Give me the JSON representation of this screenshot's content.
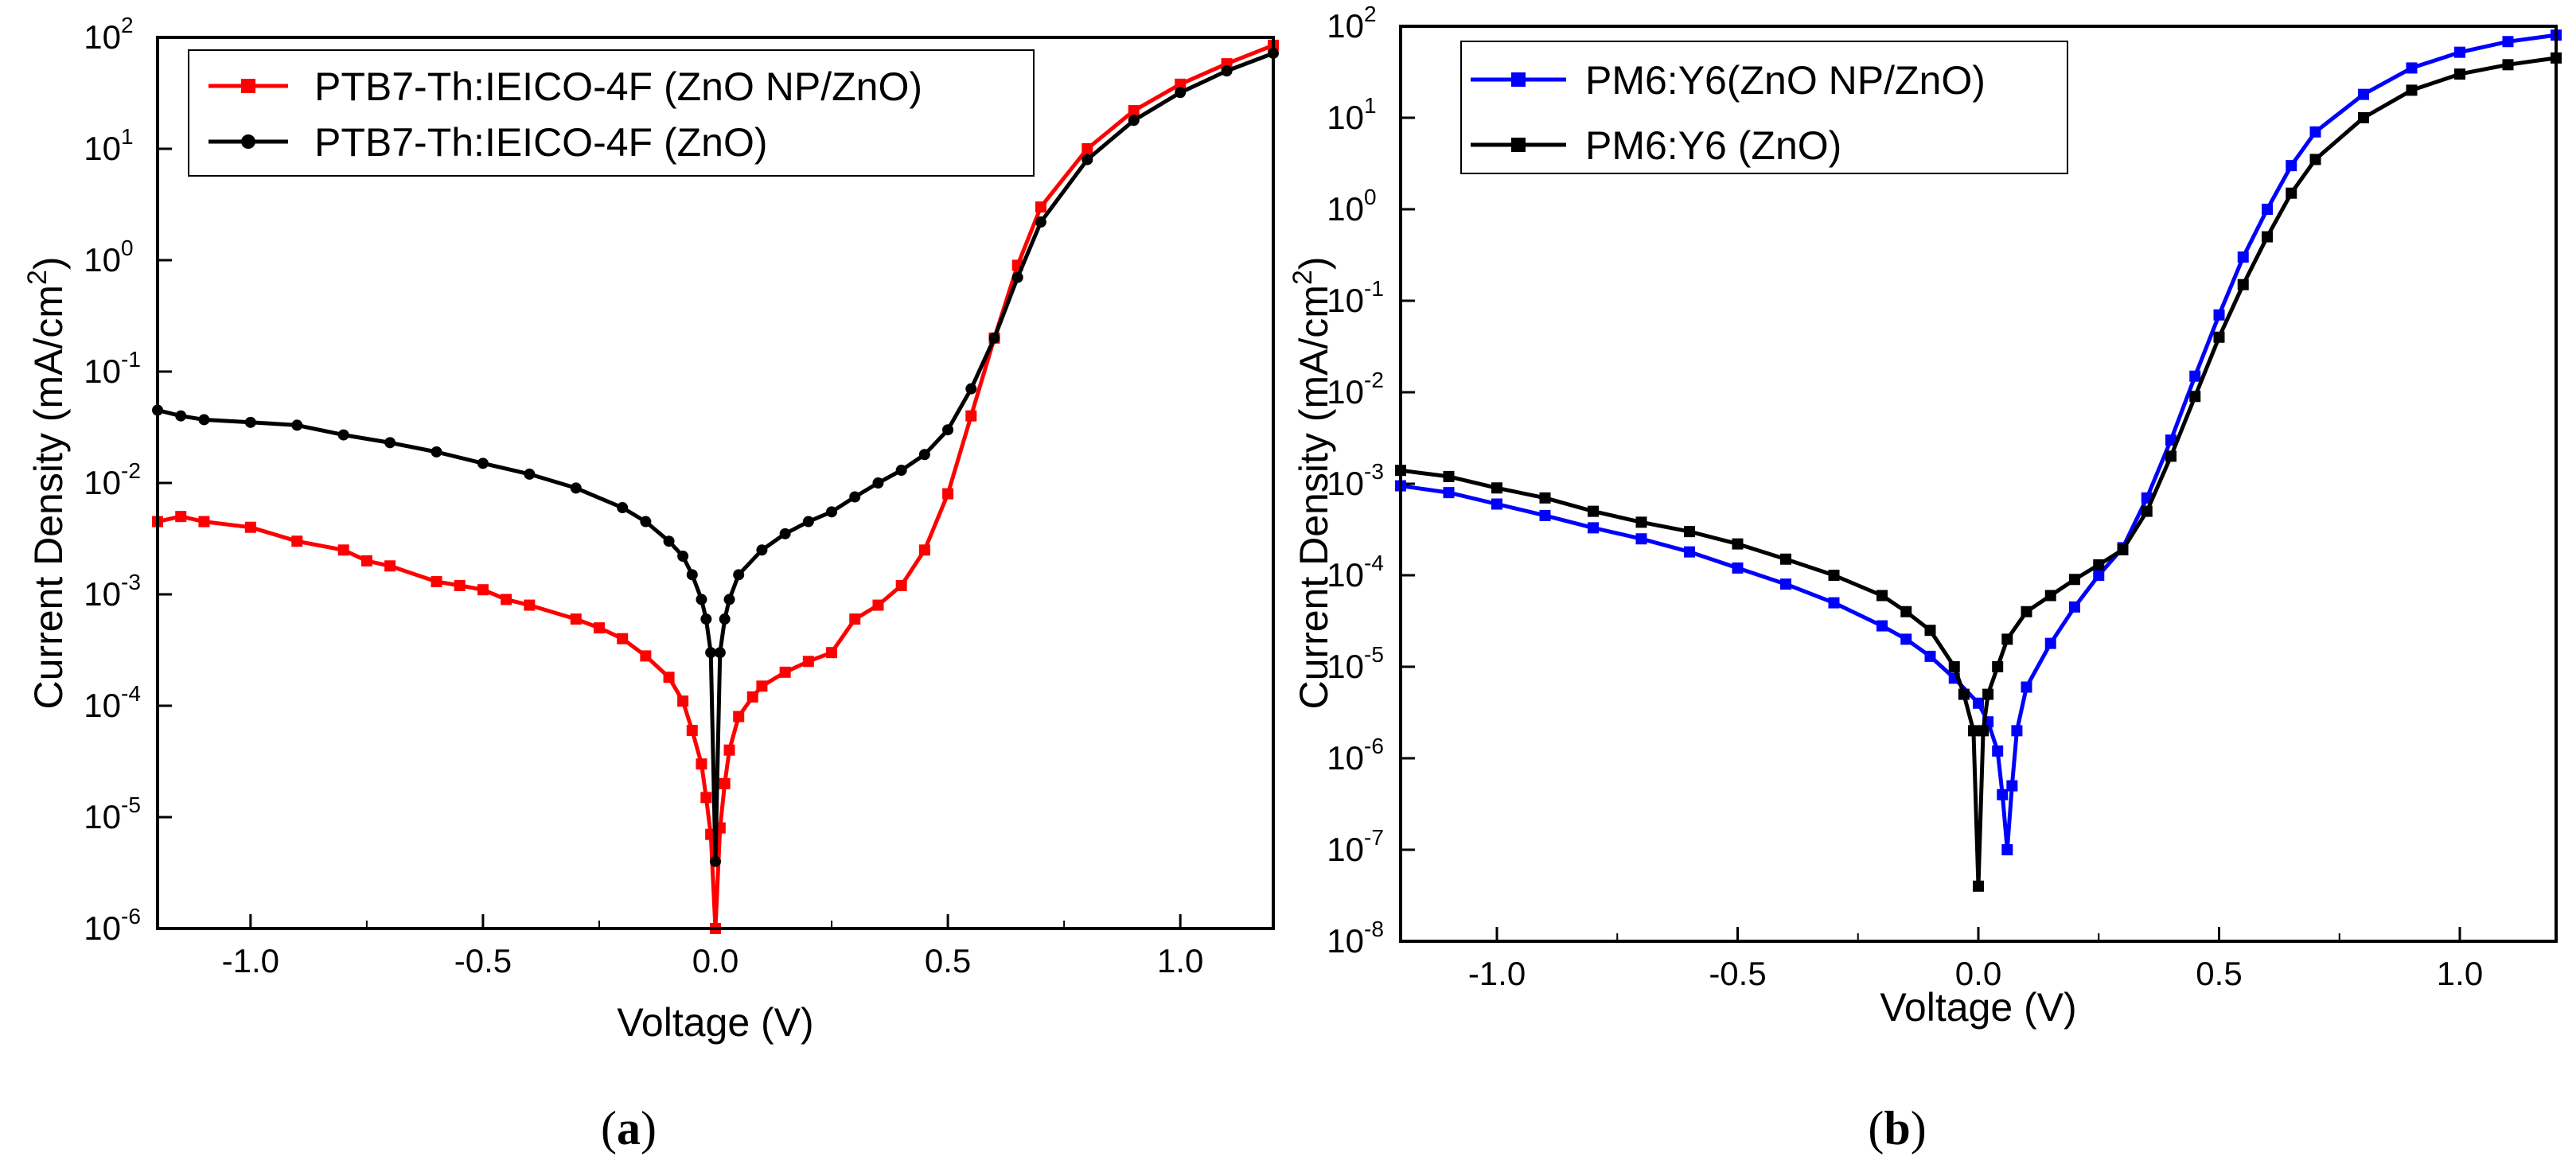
{
  "chart_data": [
    {
      "id": "a",
      "type": "line",
      "caption_letter": "a",
      "xlabel": "Voltage (V)",
      "ylabel_main": "Current Density (mA/cm",
      "ylabel_sup": "2",
      "ylabel_close": ")",
      "xlim": [
        -1.2,
        1.2
      ],
      "ylim_log10": [
        -6,
        2
      ],
      "y_scale": "log",
      "x_ticks": [
        -1.0,
        -0.5,
        0.0,
        0.5,
        1.0
      ],
      "x_tick_labels": [
        "-1.0",
        "-0.5",
        "0.0",
        "0.5",
        "1.0"
      ],
      "y_ticks_exp": [
        -6,
        -5,
        -4,
        -3,
        -2,
        -1,
        0,
        1,
        2
      ],
      "y_tick_base": "10",
      "y_tick_exp_labels": [
        "-6",
        "-5",
        "-4",
        "-3",
        "-2",
        "-1",
        "0",
        "1",
        "2"
      ],
      "legend_position": "top-left",
      "series": [
        {
          "name": "PTB7-Th:IEICO-4F (ZnO NP/ZnO)",
          "color": "#ff0000",
          "marker": "square",
          "x": [
            -1.2,
            -1.15,
            -1.1,
            -1.0,
            -0.9,
            -0.8,
            -0.75,
            -0.7,
            -0.6,
            -0.55,
            -0.5,
            -0.45,
            -0.4,
            -0.3,
            -0.25,
            -0.2,
            -0.15,
            -0.1,
            -0.07,
            -0.05,
            -0.03,
            -0.02,
            -0.01,
            0.0,
            0.01,
            0.02,
            0.03,
            0.05,
            0.08,
            0.1,
            0.15,
            0.2,
            0.25,
            0.3,
            0.35,
            0.4,
            0.45,
            0.5,
            0.55,
            0.6,
            0.65,
            0.7,
            0.8,
            0.9,
            1.0,
            1.1,
            1.2
          ],
          "y": [
            0.0045,
            0.005,
            0.0045,
            0.004,
            0.003,
            0.0025,
            0.002,
            0.0018,
            0.0013,
            0.0012,
            0.0011,
            0.0009,
            0.0008,
            0.0006,
            0.0005,
            0.0004,
            0.00028,
            0.00018,
            0.00011,
            6e-05,
            3e-05,
            1.5e-05,
            7e-06,
            1e-06,
            8e-06,
            2e-05,
            4e-05,
            8e-05,
            0.00012,
            0.00015,
            0.0002,
            0.00025,
            0.0003,
            0.0006,
            0.0008,
            0.0012,
            0.0025,
            0.008,
            0.04,
            0.2,
            0.9,
            3.0,
            10,
            22,
            38,
            58,
            85
          ]
        },
        {
          "name": "PTB7-Th:IEICO-4F (ZnO)",
          "color": "#000000",
          "marker": "circle",
          "x": [
            -1.2,
            -1.15,
            -1.1,
            -1.0,
            -0.9,
            -0.8,
            -0.7,
            -0.6,
            -0.5,
            -0.4,
            -0.3,
            -0.2,
            -0.15,
            -0.1,
            -0.07,
            -0.05,
            -0.03,
            -0.02,
            -0.01,
            0.0,
            0.01,
            0.02,
            0.03,
            0.05,
            0.1,
            0.15,
            0.2,
            0.25,
            0.3,
            0.35,
            0.4,
            0.45,
            0.5,
            0.55,
            0.6,
            0.65,
            0.7,
            0.8,
            0.9,
            1.0,
            1.1,
            1.2
          ],
          "y": [
            0.045,
            0.04,
            0.037,
            0.035,
            0.033,
            0.027,
            0.023,
            0.019,
            0.015,
            0.012,
            0.009,
            0.006,
            0.0045,
            0.003,
            0.0022,
            0.0015,
            0.0009,
            0.0006,
            0.0003,
            4e-06,
            0.0003,
            0.0006,
            0.0009,
            0.0015,
            0.0025,
            0.0035,
            0.0045,
            0.0055,
            0.0075,
            0.01,
            0.013,
            0.018,
            0.03,
            0.07,
            0.2,
            0.7,
            2.2,
            8,
            18,
            32,
            50,
            72
          ]
        }
      ]
    },
    {
      "id": "b",
      "type": "line",
      "caption_letter": "b",
      "xlabel": "Voltage (V)",
      "ylabel_main": "Current Density (mA/cm",
      "ylabel_sup": "2",
      "ylabel_close": ")",
      "xlim": [
        -1.2,
        1.2
      ],
      "ylim_log10": [
        -8,
        2
      ],
      "y_scale": "log",
      "x_ticks": [
        -1.0,
        -0.5,
        0.0,
        0.5,
        1.0
      ],
      "x_tick_labels": [
        "-1.0",
        "-0.5",
        "0.0",
        "0.5",
        "1.0"
      ],
      "y_ticks_exp": [
        -8,
        -7,
        -6,
        -5,
        -4,
        -3,
        -2,
        -1,
        0,
        1,
        2
      ],
      "y_tick_base": "10",
      "y_tick_exp_labels": [
        "-8",
        "-7",
        "-6",
        "-5",
        "-4",
        "-3",
        "-2",
        "-1",
        "0",
        "1",
        "2"
      ],
      "legend_position": "top-left",
      "series": [
        {
          "name": "PM6:Y6(ZnO NP/ZnO)",
          "color": "#0000ff",
          "marker": "square",
          "x": [
            -1.2,
            -1.1,
            -1.0,
            -0.9,
            -0.8,
            -0.7,
            -0.6,
            -0.5,
            -0.4,
            -0.3,
            -0.2,
            -0.15,
            -0.1,
            -0.05,
            0.0,
            0.02,
            0.04,
            0.05,
            0.06,
            0.07,
            0.08,
            0.1,
            0.15,
            0.2,
            0.25,
            0.3,
            0.35,
            0.4,
            0.45,
            0.5,
            0.55,
            0.6,
            0.65,
            0.7,
            0.8,
            0.9,
            1.0,
            1.1,
            1.2
          ],
          "y": [
            0.00095,
            0.0008,
            0.0006,
            0.00045,
            0.00033,
            0.00025,
            0.00018,
            0.00012,
            8e-05,
            5e-05,
            2.8e-05,
            2e-05,
            1.3e-05,
            7.5e-06,
            4e-06,
            2.5e-06,
            1.2e-06,
            4e-07,
            1e-07,
            5e-07,
            2e-06,
            6e-06,
            1.8e-05,
            4.5e-05,
            0.0001,
            0.0002,
            0.0007,
            0.003,
            0.015,
            0.07,
            0.3,
            1.0,
            3.0,
            7,
            18,
            35,
            52,
            68,
            80
          ]
        },
        {
          "name": "PM6:Y6 (ZnO)",
          "color": "#000000",
          "marker": "square",
          "x": [
            -1.2,
            -1.1,
            -1.0,
            -0.9,
            -0.8,
            -0.7,
            -0.6,
            -0.5,
            -0.4,
            -0.3,
            -0.2,
            -0.15,
            -0.1,
            -0.05,
            -0.03,
            -0.01,
            0.0,
            0.01,
            0.02,
            0.04,
            0.06,
            0.1,
            0.15,
            0.2,
            0.25,
            0.3,
            0.35,
            0.4,
            0.45,
            0.5,
            0.55,
            0.6,
            0.65,
            0.7,
            0.8,
            0.9,
            1.0,
            1.1,
            1.2
          ],
          "y": [
            0.0014,
            0.0012,
            0.0009,
            0.0007,
            0.0005,
            0.00038,
            0.0003,
            0.00022,
            0.00015,
            0.0001,
            6e-05,
            4e-05,
            2.5e-05,
            1e-05,
            5e-06,
            2e-06,
            4e-08,
            2e-06,
            5e-06,
            1e-05,
            2e-05,
            4e-05,
            6e-05,
            9e-05,
            0.00013,
            0.00019,
            0.0005,
            0.002,
            0.009,
            0.04,
            0.15,
            0.5,
            1.5,
            3.5,
            10,
            20,
            30,
            38,
            45
          ]
        }
      ]
    }
  ]
}
